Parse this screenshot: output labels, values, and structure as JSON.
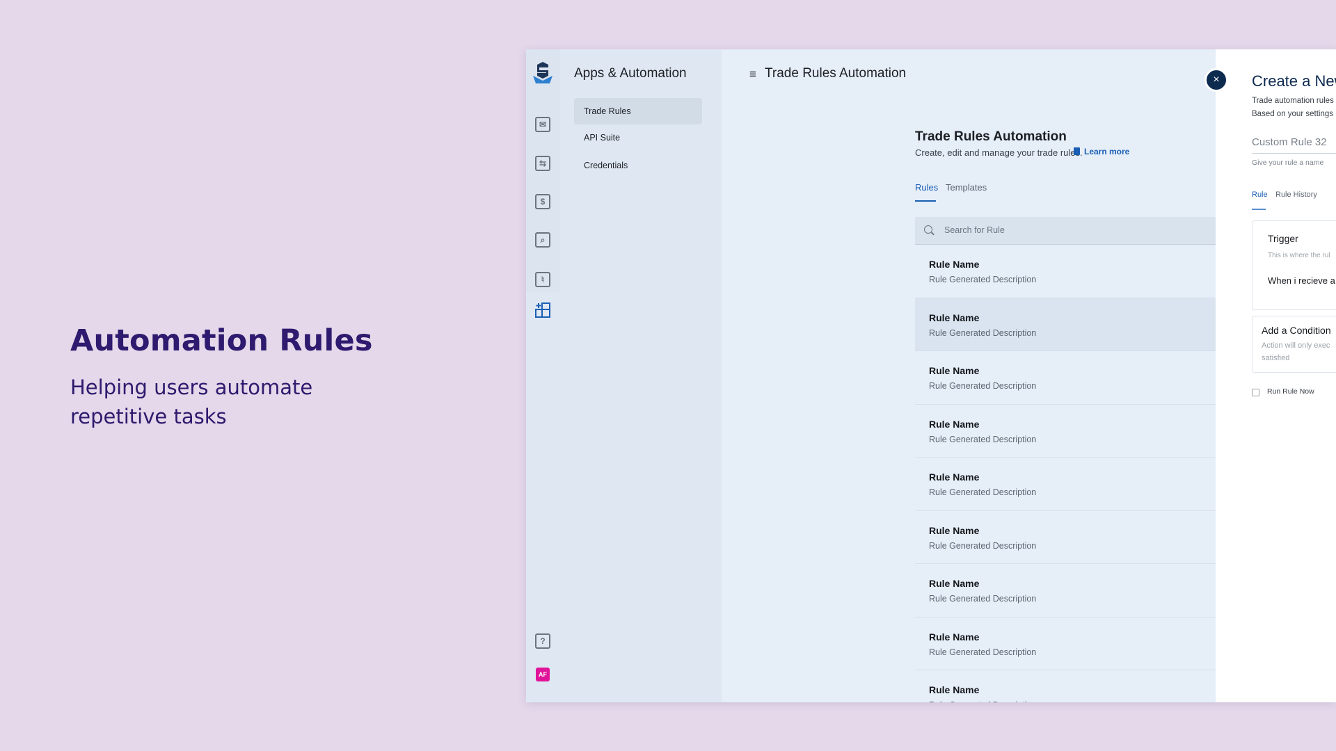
{
  "hero": {
    "title": "Automation Rules",
    "subtitle": "Helping users automate repetitive tasks"
  },
  "rail": {
    "icons": [
      "logo-icon",
      "inbox-icon",
      "transfer-icon",
      "billing-icon",
      "search-doc-icon",
      "settings-sliders-icon",
      "apps-add-icon",
      "help-icon"
    ],
    "avatar": "AF",
    "avatar_color": "#e0149a"
  },
  "nav": {
    "title": "Apps & Automation",
    "items": [
      {
        "label": "Trade Rules",
        "active": true
      },
      {
        "label": "API Suite"
      },
      {
        "label": "Credentials"
      }
    ]
  },
  "main": {
    "title": "Trade Rules Automation",
    "section_title": "Trade Rules Automation",
    "section_subtitle": "Create, edit and manage your trade rules.",
    "learn_more": "Learn more",
    "tabs": [
      {
        "label": "Rules",
        "active": true
      },
      {
        "label": "Templates"
      }
    ],
    "search_placeholder": "Search for Rule",
    "rules": [
      {
        "name": "Rule Name",
        "desc": "Rule Generated Description"
      },
      {
        "name": "Rule Name",
        "desc": "Rule Generated Description",
        "highlighted": true
      },
      {
        "name": "Rule Name",
        "desc": "Rule Generated Description"
      },
      {
        "name": "Rule Name",
        "desc": "Rule Generated Description"
      },
      {
        "name": "Rule Name",
        "desc": "Rule Generated Description"
      },
      {
        "name": "Rule Name",
        "desc": "Rule Generated Description"
      },
      {
        "name": "Rule Name",
        "desc": "Rule Generated Description"
      },
      {
        "name": "Rule Name",
        "desc": "Rule Generated Description"
      },
      {
        "name": "Rule Name",
        "desc": "Rule Generated Description"
      }
    ]
  },
  "panel": {
    "close_icon": "×",
    "title": "Create a New",
    "desc_line1": "Trade automation rules",
    "desc_line2": "Based on your settings",
    "name_value": "Custom Rule 32",
    "name_hint": "Give your rule a name",
    "tabs": [
      {
        "label": "Rule",
        "active": true
      },
      {
        "label": "Rule History"
      }
    ],
    "trigger": {
      "title": "Trigger",
      "desc": "This is where the rul",
      "text": "When i recieve a"
    },
    "condition": {
      "title": "Add a Condition",
      "desc_line1": "Action will only exec",
      "desc_line2": "satisfied"
    },
    "run_now": {
      "label": "Run Rule Now",
      "checked": false
    }
  },
  "colors": {
    "accent": "#1a5fb4",
    "hero_text": "#2e1a6e",
    "close_bg": "#0d2a4f",
    "background": "#e4d8ea"
  }
}
